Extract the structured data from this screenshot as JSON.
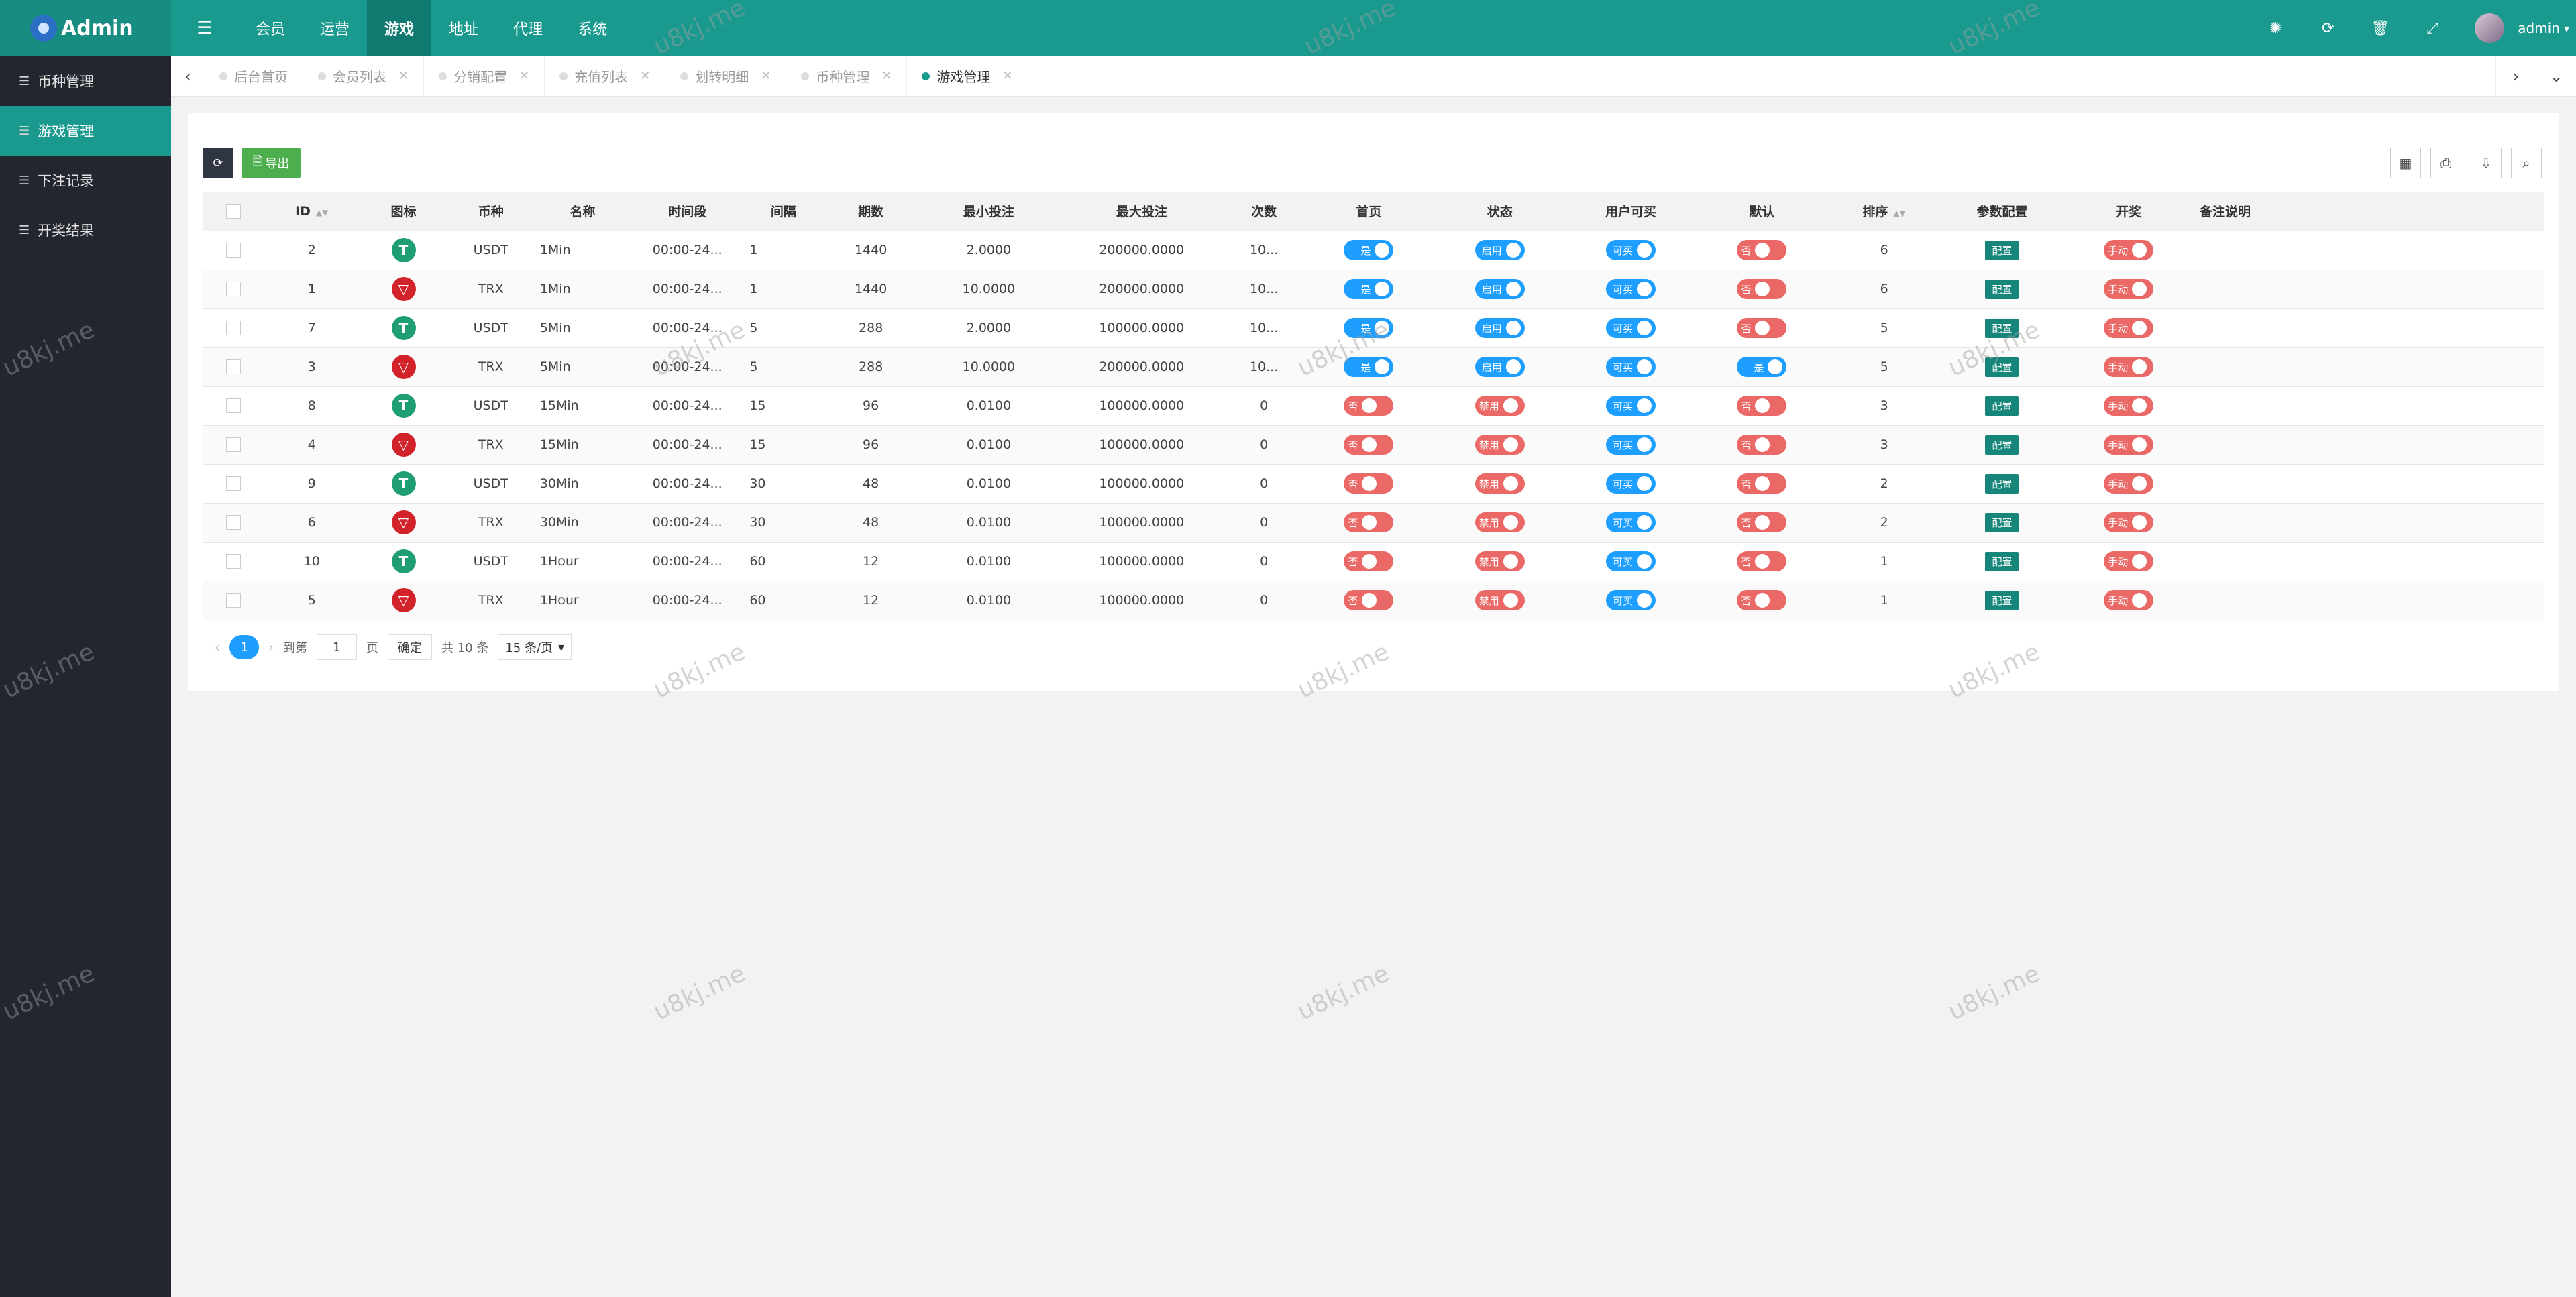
{
  "app": {
    "logo": "Admin",
    "user": "admin"
  },
  "topnav": [
    {
      "label": "会员",
      "active": false
    },
    {
      "label": "运营",
      "active": false
    },
    {
      "label": "游戏",
      "active": true
    },
    {
      "label": "地址",
      "active": false
    },
    {
      "label": "代理",
      "active": false
    },
    {
      "label": "系统",
      "active": false
    }
  ],
  "sidebar": [
    {
      "label": "币种管理",
      "active": false
    },
    {
      "label": "游戏管理",
      "active": true
    },
    {
      "label": "下注记录",
      "active": false
    },
    {
      "label": "开奖结果",
      "active": false
    }
  ],
  "tabs": [
    {
      "label": "后台首页",
      "active": false,
      "closable": false
    },
    {
      "label": "会员列表",
      "active": false,
      "closable": true
    },
    {
      "label": "分销配置",
      "active": false,
      "closable": true
    },
    {
      "label": "充值列表",
      "active": false,
      "closable": true
    },
    {
      "label": "划转明细",
      "active": false,
      "closable": true
    },
    {
      "label": "币种管理",
      "active": false,
      "closable": true
    },
    {
      "label": "游戏管理",
      "active": true,
      "closable": true
    }
  ],
  "toolbar": {
    "export_label": "导出"
  },
  "table": {
    "headers": [
      "ID",
      "图标",
      "币种",
      "名称",
      "时间段",
      "间隔",
      "期数",
      "最小投注",
      "最大投注",
      "次数",
      "首页",
      "状态",
      "用户可买",
      "默认",
      "排序",
      "参数配置",
      "开奖",
      "备注说明"
    ],
    "rows": [
      {
        "id": "2",
        "coin": "USDT",
        "name": "1Min",
        "period": "00:00-24...",
        "interval": "1",
        "issues": "1440",
        "min": "2.0000",
        "max": "200000.0000",
        "count": "10...",
        "home": "是",
        "status": "启用",
        "buy": "可买",
        "def": "否",
        "sort": "6",
        "cfg": "配置",
        "draw": "手动"
      },
      {
        "id": "1",
        "coin": "TRX",
        "name": "1Min",
        "period": "00:00-24...",
        "interval": "1",
        "issues": "1440",
        "min": "10.0000",
        "max": "200000.0000",
        "count": "10...",
        "home": "是",
        "status": "启用",
        "buy": "可买",
        "def": "否",
        "sort": "6",
        "cfg": "配置",
        "draw": "手动"
      },
      {
        "id": "7",
        "coin": "USDT",
        "name": "5Min",
        "period": "00:00-24...",
        "interval": "5",
        "issues": "288",
        "min": "2.0000",
        "max": "100000.0000",
        "count": "10...",
        "home": "是",
        "status": "启用",
        "buy": "可买",
        "def": "否",
        "sort": "5",
        "cfg": "配置",
        "draw": "手动"
      },
      {
        "id": "3",
        "coin": "TRX",
        "name": "5Min",
        "period": "00:00-24...",
        "interval": "5",
        "issues": "288",
        "min": "10.0000",
        "max": "200000.0000",
        "count": "10...",
        "home": "是",
        "status": "启用",
        "buy": "可买",
        "def": "是",
        "sort": "5",
        "cfg": "配置",
        "draw": "手动"
      },
      {
        "id": "8",
        "coin": "USDT",
        "name": "15Min",
        "period": "00:00-24...",
        "interval": "15",
        "issues": "96",
        "min": "0.0100",
        "max": "100000.0000",
        "count": "0",
        "home": "否",
        "status": "禁用",
        "buy": "可买",
        "def": "否",
        "sort": "3",
        "cfg": "配置",
        "draw": "手动"
      },
      {
        "id": "4",
        "coin": "TRX",
        "name": "15Min",
        "period": "00:00-24...",
        "interval": "15",
        "issues": "96",
        "min": "0.0100",
        "max": "100000.0000",
        "count": "0",
        "home": "否",
        "status": "禁用",
        "buy": "可买",
        "def": "否",
        "sort": "3",
        "cfg": "配置",
        "draw": "手动"
      },
      {
        "id": "9",
        "coin": "USDT",
        "name": "30Min",
        "period": "00:00-24...",
        "interval": "30",
        "issues": "48",
        "min": "0.0100",
        "max": "100000.0000",
        "count": "0",
        "home": "否",
        "status": "禁用",
        "buy": "可买",
        "def": "否",
        "sort": "2",
        "cfg": "配置",
        "draw": "手动"
      },
      {
        "id": "6",
        "coin": "TRX",
        "name": "30Min",
        "period": "00:00-24...",
        "interval": "30",
        "issues": "48",
        "min": "0.0100",
        "max": "100000.0000",
        "count": "0",
        "home": "否",
        "status": "禁用",
        "buy": "可买",
        "def": "否",
        "sort": "2",
        "cfg": "配置",
        "draw": "手动"
      },
      {
        "id": "10",
        "coin": "USDT",
        "name": "1Hour",
        "period": "00:00-24...",
        "interval": "60",
        "issues": "12",
        "min": "0.0100",
        "max": "100000.0000",
        "count": "0",
        "home": "否",
        "status": "禁用",
        "buy": "可买",
        "def": "否",
        "sort": "1",
        "cfg": "配置",
        "draw": "手动"
      },
      {
        "id": "5",
        "coin": "TRX",
        "name": "1Hour",
        "period": "00:00-24...",
        "interval": "60",
        "issues": "12",
        "min": "0.0100",
        "max": "100000.0000",
        "count": "0",
        "home": "否",
        "status": "禁用",
        "buy": "可买",
        "def": "否",
        "sort": "1",
        "cfg": "配置",
        "draw": "手动"
      }
    ]
  },
  "pagination": {
    "current": "1",
    "goto_label": "到第",
    "goto_value": "1",
    "page_label": "页",
    "confirm": "确定",
    "total": "共 10 条",
    "per_page": "15 条/页"
  },
  "watermark": "u8kj.me",
  "colors": {
    "primary": "#1a9a8e",
    "sidebar": "#24262f",
    "switch_on": "#1e9fff",
    "switch_off": "#ea6966"
  }
}
